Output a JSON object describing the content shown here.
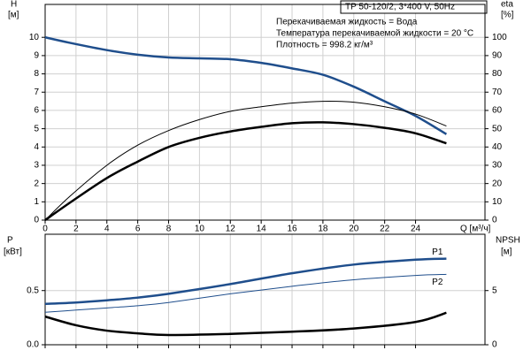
{
  "chart_data": [
    {
      "type": "line",
      "annotations": [
        "TP 50-120/2, 3*400 V, 50Hz",
        "Перекачиваемая жидкость = Вода",
        "Температура перекачиваемой жидкости = 20 °C",
        "Плотность = 998.2 кг/м³"
      ],
      "xlabel": "Q [м³/ч]",
      "ylabel": "H",
      "yunit": "[м]",
      "y2label": "eta",
      "y2unit": "[%]",
      "x": [
        0,
        1.6,
        4,
        6,
        8,
        10,
        12,
        14,
        16,
        18,
        20,
        22,
        24,
        26
      ],
      "series": [
        {
          "color": "#1f4e8c",
          "width": 2.5,
          "values": [
            10,
            9.7,
            9.3,
            9.05,
            8.9,
            8.85,
            8.8,
            8.6,
            8.3,
            7.95,
            7.3,
            6.5,
            5.7,
            4.7
          ]
        },
        {
          "color": "#000000",
          "width": 1,
          "axis": "y2",
          "values": [
            0,
            13,
            30,
            41,
            49,
            55,
            59.5,
            62,
            64,
            65,
            64.5,
            62,
            58,
            51.5
          ]
        },
        {
          "color": "#000000",
          "width": 2.5,
          "axis": "y2",
          "values": [
            0,
            9.5,
            23,
            32,
            40,
            45,
            48.5,
            51,
            53,
            53.5,
            52.5,
            50.5,
            47.5,
            42
          ]
        }
      ],
      "xlim": [
        0,
        28.5
      ],
      "xticks": [
        0,
        2,
        4,
        6,
        8,
        10,
        12,
        14,
        16,
        18,
        20,
        22,
        24
      ],
      "ylim": [
        0,
        11.8
      ],
      "yticks": [
        0,
        1,
        2,
        3,
        4,
        5,
        6,
        7,
        8,
        9,
        10
      ],
      "y2lim": [
        0,
        118
      ],
      "y2ticks": [
        0,
        10,
        20,
        30,
        40,
        50,
        60,
        70,
        80,
        90,
        100
      ],
      "grid": true
    },
    {
      "type": "line",
      "ylabel": "P",
      "yunit": "[кВт]",
      "y2label": "NPSH",
      "y2unit": "[м]",
      "x": [
        0,
        2,
        4,
        6,
        8,
        12,
        16,
        20,
        24,
        26
      ],
      "series": [
        {
          "name": "P1",
          "color": "#1f4e8c",
          "width": 2.5,
          "values": [
            0.377,
            0.39,
            0.41,
            0.435,
            0.47,
            0.56,
            0.66,
            0.74,
            0.785,
            0.795
          ]
        },
        {
          "name": "P2",
          "color": "#1f4e8c",
          "width": 1,
          "values": [
            0.3,
            0.32,
            0.34,
            0.36,
            0.39,
            0.47,
            0.54,
            0.6,
            0.64,
            0.65
          ]
        },
        {
          "color": "#000000",
          "width": 2.5,
          "axis": "y2",
          "values": [
            2.6,
            1.8,
            1.3,
            1.05,
            0.9,
            1.0,
            1.2,
            1.5,
            2.1,
            2.95
          ]
        }
      ],
      "xlim": [
        0,
        28.5
      ],
      "ylim": [
        0,
        1.02
      ],
      "yticks": [
        {
          "value": 0,
          "label": "0.0"
        },
        0.5
      ],
      "y2lim": [
        0,
        10.2
      ],
      "y2ticks": [
        0,
        5
      ],
      "grid": true
    }
  ]
}
